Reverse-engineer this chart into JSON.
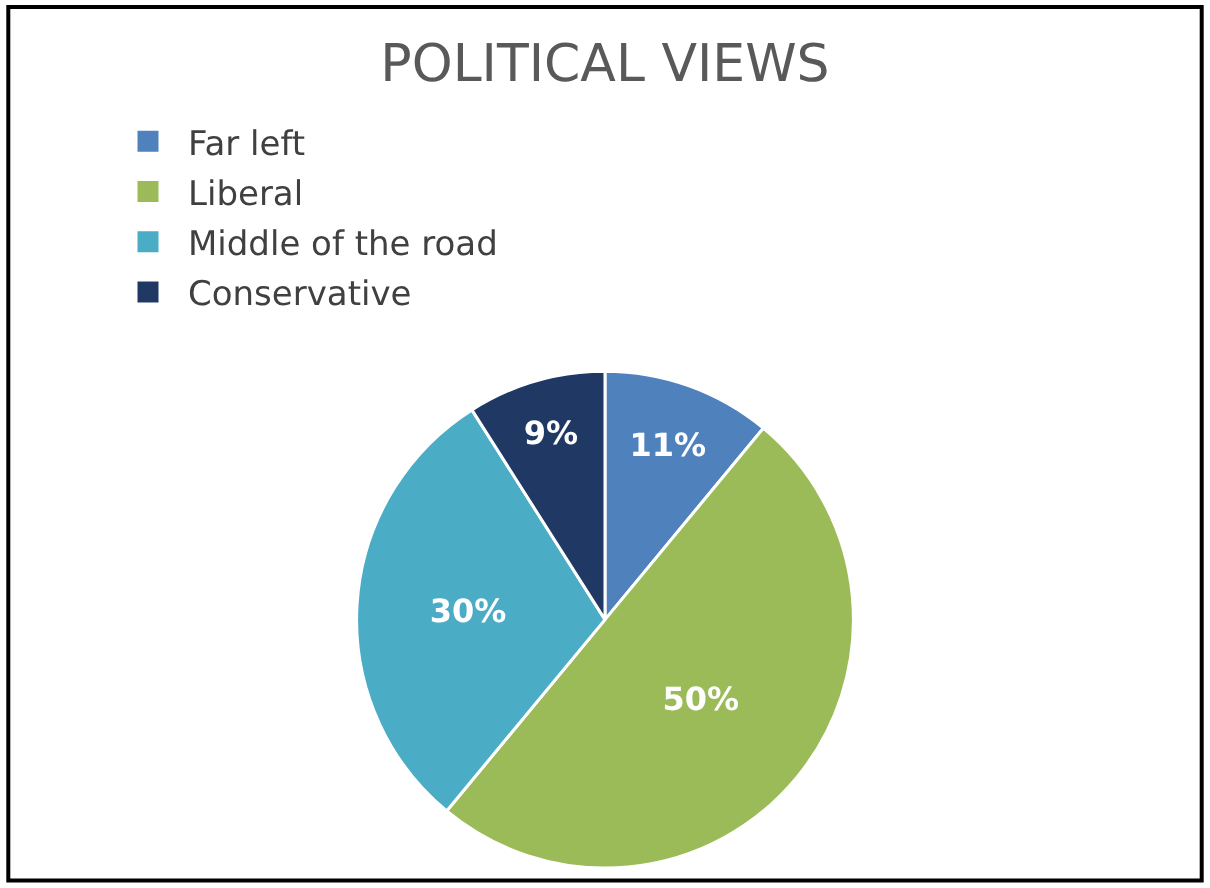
{
  "chart_data": {
    "type": "pie",
    "title": "POLITICAL VIEWS",
    "categories": [
      "Far left",
      "Liberal",
      "Middle of the road",
      "Conservative"
    ],
    "values": [
      11,
      50,
      30,
      9
    ],
    "colors": [
      "#4f81bd",
      "#9bbb59",
      "#4bacc6",
      "#1f3864"
    ],
    "value_labels": [
      "11%",
      "50%",
      "30%",
      "9%"
    ],
    "legend": "top"
  }
}
